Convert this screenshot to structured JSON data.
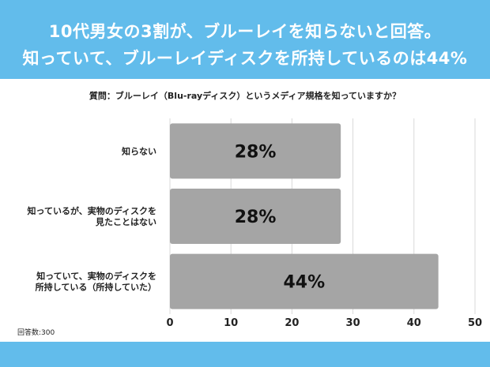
{
  "header": {
    "title_line1": "10代男女の3割が、ブルーレイを知らないと回答。",
    "title_line2": "知っていて、ブルーレイディスクを所持しているのは44%"
  },
  "question": "質問：ブルーレイ（Blu-rayディスク）というメディア規格を知っていますか？",
  "note": "回答数:300",
  "colors": {
    "header_bg": "#62bceb",
    "bar": "#a5a5a5",
    "grid": "#d9d9d9"
  },
  "chart_data": {
    "type": "bar",
    "orientation": "horizontal",
    "categories": [
      [
        "知らない"
      ],
      [
        "知っているが、実物のディスクを",
        "見たことはない"
      ],
      [
        "知っていて、実物のディスクを",
        "所持している（所持していた）"
      ]
    ],
    "values": [
      28,
      28,
      44
    ],
    "data_labels": [
      "28%",
      "28%",
      "44%"
    ],
    "xlim": [
      0,
      50
    ],
    "xticks": [
      0,
      10,
      20,
      30,
      40,
      50
    ],
    "grid": true
  }
}
